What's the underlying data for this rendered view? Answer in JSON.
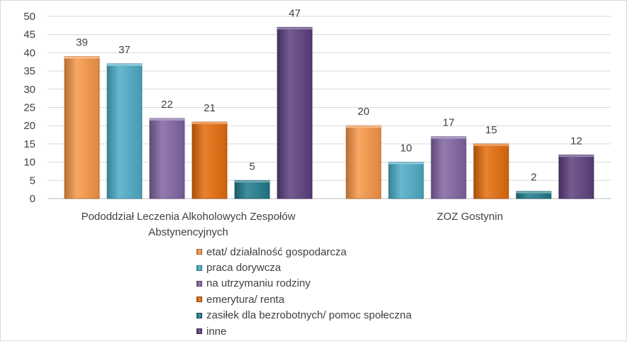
{
  "chart_data": {
    "type": "bar",
    "title": "",
    "xlabel": "",
    "ylabel": "",
    "ylim": [
      0,
      50
    ],
    "yticks": [
      0,
      5,
      10,
      15,
      20,
      25,
      30,
      35,
      40,
      45,
      50
    ],
    "grid": true,
    "legend_position": "bottom",
    "categories": [
      [
        "Pododdział Leczenia Alkoholowych Zespołów",
        "Abstynencyjnych"
      ],
      [
        "ZOZ Gostynin"
      ]
    ],
    "series": [
      {
        "name": "etat/ działalność gospodarcza",
        "color": "#f79646",
        "values": [
          39,
          20
        ]
      },
      {
        "name": "praca dorywcza",
        "color": "#4bacc6",
        "values": [
          37,
          10
        ]
      },
      {
        "name": "na utrzymaniu rodziny",
        "color": "#8064a2",
        "values": [
          22,
          17
        ]
      },
      {
        "name": "emerytura/ renta",
        "color": "#e46c0a",
        "values": [
          21,
          15
        ]
      },
      {
        "name": "zasiłek dla bezrobotnych/ pomoc społeczna",
        "color": "#1f7a8c",
        "values": [
          5,
          2
        ]
      },
      {
        "name": "inne",
        "color": "#5b3f7f",
        "values": [
          47,
          12
        ]
      }
    ]
  }
}
